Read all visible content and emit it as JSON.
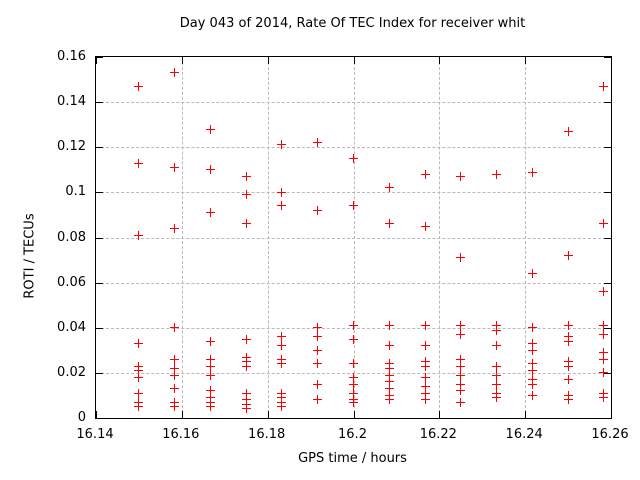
{
  "chart_data": {
    "type": "scatter",
    "title": "Day 043 of 2014, Rate Of TEC Index for receiver whit",
    "xlabel": "GPS time / hours",
    "ylabel": "ROTI / TECUs",
    "xlim": [
      16.14,
      16.26
    ],
    "ylim": [
      0,
      0.16
    ],
    "x_tick_values": [
      16.14,
      16.16,
      16.18,
      16.2,
      16.22,
      16.24,
      16.26
    ],
    "x_tick_labels": [
      "16.14",
      "16.16",
      "16.18",
      "16.2",
      "16.22",
      "16.24",
      "16.26"
    ],
    "y_tick_values": [
      0,
      0.02,
      0.04,
      0.06,
      0.08,
      0.1,
      0.12,
      0.14,
      0.16
    ],
    "y_tick_labels": [
      "0",
      "0.02",
      "0.04",
      "0.06",
      "0.08",
      "0.1",
      "0.12",
      "0.14",
      "0.16"
    ],
    "grid": true,
    "legend": "none",
    "grid_color": "#b9b9b9",
    "axis_color": "#000000",
    "marker": {
      "shape": "plus",
      "color": "#ff0000",
      "size": 9
    },
    "series": [
      {
        "name": "ROTI",
        "columns": [
          {
            "t": 16.15,
            "roti": [
              0.147,
              0.113,
              0.081,
              0.033,
              0.023,
              0.021,
              0.018,
              0.011,
              0.007,
              0.005
            ]
          },
          {
            "t": 16.1583,
            "roti": [
              0.153,
              0.111,
              0.084,
              0.04,
              0.026,
              0.022,
              0.019,
              0.013,
              0.007,
              0.005
            ]
          },
          {
            "t": 16.1667,
            "roti": [
              0.128,
              0.11,
              0.091,
              0.034,
              0.026,
              0.023,
              0.019,
              0.012,
              0.009,
              0.007,
              0.005
            ]
          },
          {
            "t": 16.175,
            "roti": [
              0.107,
              0.099,
              0.086,
              0.035,
              0.027,
              0.025,
              0.023,
              0.011,
              0.008,
              0.006,
              0.004
            ]
          },
          {
            "t": 16.1833,
            "roti": [
              0.121,
              0.1,
              0.094,
              0.036,
              0.032,
              0.026,
              0.024,
              0.011,
              0.009,
              0.007,
              0.005
            ]
          },
          {
            "t": 16.1917,
            "roti": [
              0.122,
              0.092,
              0.04,
              0.036,
              0.03,
              0.024,
              0.015,
              0.008
            ]
          },
          {
            "t": 16.2,
            "roti": [
              0.115,
              0.094,
              0.041,
              0.035,
              0.024,
              0.018,
              0.015,
              0.011,
              0.008,
              0.007
            ]
          },
          {
            "t": 16.2083,
            "roti": [
              0.102,
              0.086,
              0.041,
              0.032,
              0.024,
              0.022,
              0.019,
              0.016,
              0.013,
              0.01,
              0.008
            ]
          },
          {
            "t": 16.2167,
            "roti": [
              0.108,
              0.085,
              0.041,
              0.032,
              0.025,
              0.023,
              0.018,
              0.014,
              0.011,
              0.008
            ]
          },
          {
            "t": 16.225,
            "roti": [
              0.107,
              0.071,
              0.041,
              0.037,
              0.026,
              0.023,
              0.019,
              0.015,
              0.012,
              0.007
            ]
          },
          {
            "t": 16.2333,
            "roti": [
              0.108,
              0.041,
              0.039,
              0.032,
              0.023,
              0.019,
              0.015,
              0.011,
              0.009
            ]
          },
          {
            "t": 16.2417,
            "roti": [
              0.109,
              0.064,
              0.04,
              0.033,
              0.03,
              0.024,
              0.021,
              0.017,
              0.015,
              0.01
            ]
          },
          {
            "t": 16.25,
            "roti": [
              0.127,
              0.072,
              0.041,
              0.036,
              0.034,
              0.025,
              0.023,
              0.017,
              0.01,
              0.008
            ]
          },
          {
            "t": 16.2583,
            "roti": [
              0.147,
              0.086,
              0.056,
              0.041,
              0.037,
              0.029,
              0.026,
              0.02,
              0.011,
              0.009
            ]
          }
        ]
      }
    ]
  }
}
